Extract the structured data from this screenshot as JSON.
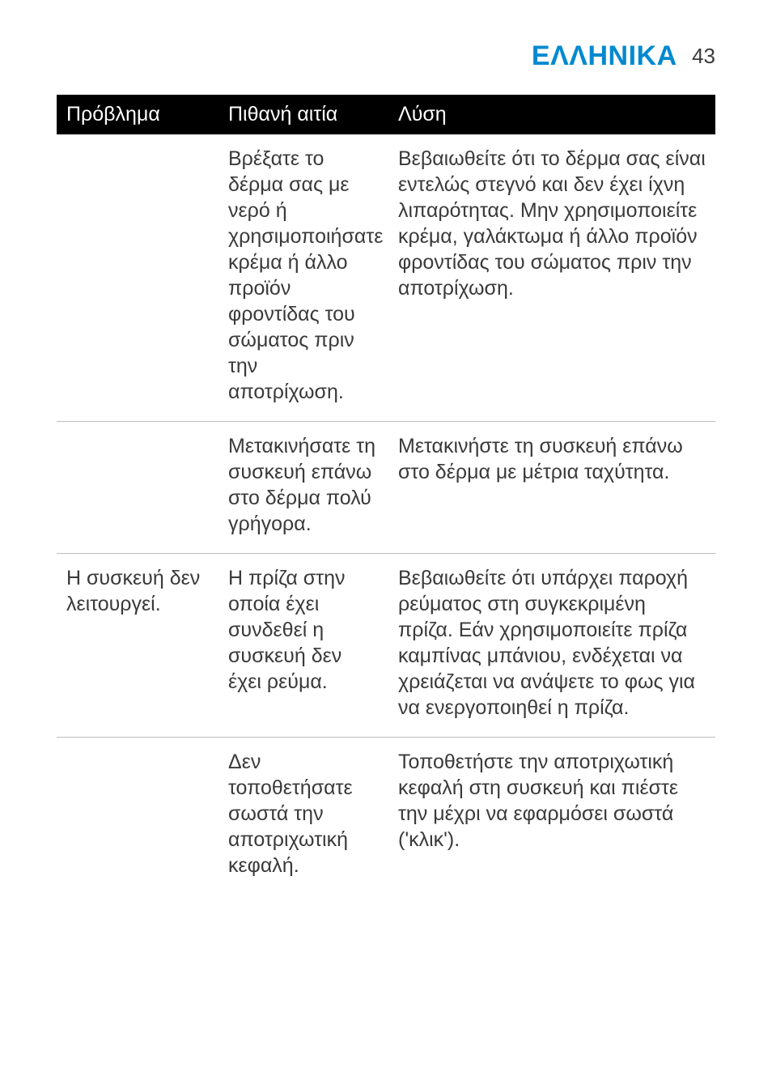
{
  "header": {
    "lang_label": "ΕΛΛΗΝΙΚΑ",
    "page_number": "43"
  },
  "colors": {
    "brand": "#0089d0",
    "text": "#3a3a3a",
    "header_bg": "#000000",
    "header_fg": "#ffffff",
    "rule": "#bdbdbd",
    "page_bg": "#ffffff"
  },
  "table": {
    "columns": [
      {
        "key": "problem",
        "label": "Πρόβλημα"
      },
      {
        "key": "cause",
        "label": "Πιθανή αιτία"
      },
      {
        "key": "solution",
        "label": "Λύση"
      }
    ],
    "rows": [
      {
        "problem": "",
        "cause": "Βρέξατε το δέρμα σας με νερό ή χρησιμοποιήσατε κρέμα ή άλλο προϊόν φροντίδας του σώματος πριν την αποτρίχωση.",
        "solution": "Βεβαιωθείτε ότι το δέρμα σας είναι εντελώς στεγνό και δεν έχει ίχνη λιπαρότητας. Μην χρησιμοποιείτε κρέμα, γαλάκτωμα ή άλλο προϊόν φροντίδας του σώματος πριν την αποτρίχωση."
      },
      {
        "problem": "",
        "cause": "Μετακινήσατε τη συσκευή επάνω στο δέρμα πολύ γρήγορα.",
        "solution": "Μετακινήστε τη συσκευή επάνω στο δέρμα με μέτρια ταχύτητα."
      },
      {
        "problem": "Η συσκευή δεν λειτουργεί.",
        "cause": "Η πρίζα στην οποία έχει συνδεθεί η συσκευή δεν έχει ρεύμα.",
        "solution": "Βεβαιωθείτε ότι υπάρχει παροχή ρεύματος στη συγκεκριμένη πρίζα. Εάν χρησιμοποιείτε πρίζα καμπίνας μπάνιου, ενδέχεται να χρειάζεται να ανάψετε το φως για να ενεργοποιηθεί η πρίζα."
      },
      {
        "problem": "",
        "cause": "Δεν τοποθετήσατε σωστά την αποτριχωτική κεφαλή.",
        "solution": "Τοποθετήστε την αποτριχωτική κεφαλή στη συσκευή και πιέστε την μέχρι να εφαρμόσει σωστά ('κλικ')."
      }
    ]
  }
}
